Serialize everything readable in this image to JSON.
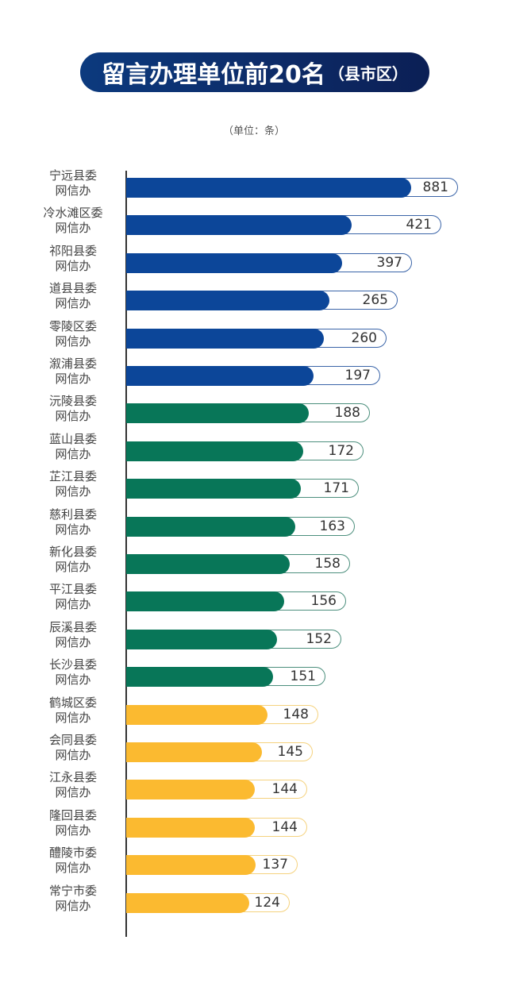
{
  "header": {
    "title_main": "留言办理单位前20名",
    "title_sub": "（县市区）",
    "unit": "（单位：条）"
  },
  "colors": {
    "blue": "#0c4699",
    "green": "#087658",
    "yellow": "#fbba30",
    "blue_outline": "#3a64a8",
    "green_outline": "#4c8f7d",
    "yellow_outline": "#f5d27e"
  },
  "chart_data": {
    "type": "bar",
    "orientation": "horizontal",
    "title": "留言办理单位前20名（县市区）",
    "subtitle": "（单位：条）",
    "xlabel": "",
    "ylabel": "",
    "categories": [
      "宁远县委网信办",
      "冷水滩区委网信办",
      "祁阳县委网信办",
      "道县县委网信办",
      "零陵区委网信办",
      "溆浦县委网信办",
      "沅陵县委网信办",
      "蓝山县委网信办",
      "芷江县委网信办",
      "慈利县委网信办",
      "新化县委网信办",
      "平江县委网信办",
      "辰溪县委网信办",
      "长沙县委网信办",
      "鹤城区委网信办",
      "会同县委网信办",
      "江永县委网信办",
      "隆回县委网信办",
      "醴陵市委网信办",
      "常宁市委网信办"
    ],
    "values": [
      881,
      421,
      397,
      265,
      260,
      197,
      188,
      172,
      171,
      163,
      158,
      156,
      152,
      151,
      148,
      145,
      144,
      144,
      137,
      124
    ],
    "grid": false,
    "legend": null
  },
  "rows": [
    {
      "l1": "宁远县委",
      "l2": "网信办",
      "value": "881",
      "c": "blue",
      "fill": 359,
      "out": 418
    },
    {
      "l1": "冷水滩区委",
      "l2": "网信办",
      "value": "421",
      "c": "blue",
      "fill": 284,
      "out": 397
    },
    {
      "l1": "祁阳县委",
      "l2": "网信办",
      "value": "397",
      "c": "blue",
      "fill": 272,
      "out": 360
    },
    {
      "l1": "道县县委",
      "l2": "网信办",
      "value": "265",
      "c": "blue",
      "fill": 256,
      "out": 342
    },
    {
      "l1": "零陵区委",
      "l2": "网信办",
      "value": "260",
      "c": "blue",
      "fill": 249,
      "out": 328
    },
    {
      "l1": "溆浦县委",
      "l2": "网信办",
      "value": "197",
      "c": "blue",
      "fill": 236,
      "out": 320
    },
    {
      "l1": "沅陵县委",
      "l2": "网信办",
      "value": "188",
      "c": "green",
      "fill": 230,
      "out": 307
    },
    {
      "l1": "蓝山县委",
      "l2": "网信办",
      "value": "172",
      "c": "green",
      "fill": 223,
      "out": 299
    },
    {
      "l1": "芷江县委",
      "l2": "网信办",
      "value": "171",
      "c": "green",
      "fill": 220,
      "out": 293
    },
    {
      "l1": "慈利县委",
      "l2": "网信办",
      "value": "163",
      "c": "green",
      "fill": 213,
      "out": 288
    },
    {
      "l1": "新化县委",
      "l2": "网信办",
      "value": "158",
      "c": "green",
      "fill": 206,
      "out": 282
    },
    {
      "l1": "平江县委",
      "l2": "网信办",
      "value": "156",
      "c": "green",
      "fill": 199,
      "out": 277
    },
    {
      "l1": "辰溪县委",
      "l2": "网信办",
      "value": "152",
      "c": "green",
      "fill": 190,
      "out": 271
    },
    {
      "l1": "长沙县委",
      "l2": "网信办",
      "value": "151",
      "c": "green",
      "fill": 185,
      "out": 251
    },
    {
      "l1": "鹤城区委",
      "l2": "网信办",
      "value": "148",
      "c": "yellow",
      "fill": 178,
      "out": 242
    },
    {
      "l1": "会同县委",
      "l2": "网信办",
      "value": "145",
      "c": "yellow",
      "fill": 171,
      "out": 235
    },
    {
      "l1": "江永县委",
      "l2": "网信办",
      "value": "144",
      "c": "yellow",
      "fill": 162,
      "out": 228
    },
    {
      "l1": "隆回县委",
      "l2": "网信办",
      "value": "144",
      "c": "yellow",
      "fill": 162,
      "out": 228
    },
    {
      "l1": "醴陵市委",
      "l2": "网信办",
      "value": "137",
      "c": "yellow",
      "fill": 163,
      "out": 216
    },
    {
      "l1": "常宁市委",
      "l2": "网信办",
      "value": "124",
      "c": "yellow",
      "fill": 155,
      "out": 206
    }
  ]
}
